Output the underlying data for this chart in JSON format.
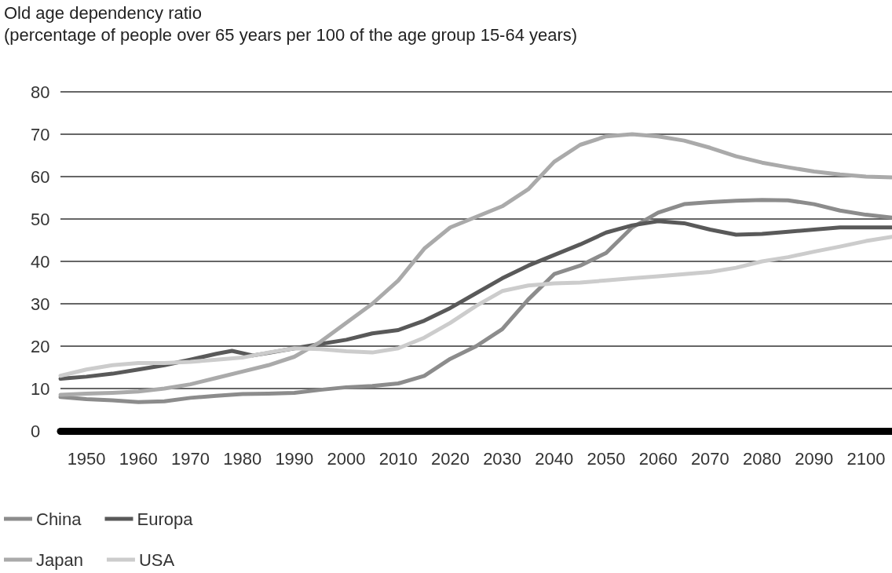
{
  "chart_data": {
    "type": "line",
    "title": "Old age dependency ratio",
    "subtitle": "(percentage of people over 65 years per 100 of the age group 15-64 years)",
    "xlim": [
      1945,
      2105
    ],
    "xticks": [
      1950,
      1960,
      1970,
      1980,
      1990,
      2000,
      2010,
      2020,
      2030,
      2040,
      2050,
      2060,
      2070,
      2080,
      2090,
      2100
    ],
    "ylim": [
      0,
      80
    ],
    "yticks": [
      0,
      10,
      20,
      30,
      40,
      50,
      60,
      70,
      80
    ],
    "grid": "y",
    "legend": "bottom left",
    "marker": "none",
    "line_style": "solid",
    "series": [
      {
        "name": "China",
        "color": "#8c8c8c",
        "x": [
          1945,
          1950,
          1955,
          1960,
          1965,
          1970,
          1975,
          1980,
          1985,
          1990,
          1995,
          2000,
          2005,
          2010,
          2015,
          2020,
          2025,
          2030,
          2035,
          2040,
          2045,
          2050,
          2055,
          2060,
          2065,
          2070,
          2075,
          2080,
          2085,
          2090,
          2095,
          2100,
          2105
        ],
        "values": [
          8,
          7.5,
          7.2,
          6.8,
          7,
          7.8,
          8.3,
          8.7,
          8.8,
          9,
          9.7,
          10.3,
          10.6,
          11.2,
          13,
          17,
          20,
          24,
          31,
          37,
          39,
          42,
          48,
          51.5,
          53.5,
          54,
          54.3,
          54.5,
          54.4,
          53.5,
          52,
          51,
          50.3
        ]
      },
      {
        "name": "Europa",
        "color": "#595959",
        "x": [
          1945,
          1950,
          1955,
          1960,
          1965,
          1970,
          1975,
          1978,
          1982,
          1985,
          1990,
          1995,
          2000,
          2005,
          2010,
          2015,
          2020,
          2025,
          2030,
          2035,
          2040,
          2045,
          2050,
          2055,
          2060,
          2065,
          2070,
          2075,
          2080,
          2085,
          2090,
          2095,
          2100,
          2105
        ],
        "values": [
          12.3,
          12.8,
          13.5,
          14.5,
          15.5,
          16.8,
          18.2,
          18.9,
          17.8,
          18.4,
          19.5,
          20.5,
          21.5,
          23,
          23.8,
          26,
          29,
          32.5,
          36,
          39,
          41.5,
          44,
          46.8,
          48.5,
          49.5,
          49,
          47.5,
          46.3,
          46.5,
          47,
          47.5,
          48,
          48,
          48
        ]
      },
      {
        "name": "Japan",
        "color": "#aaaaaa",
        "x": [
          1945,
          1950,
          1955,
          1960,
          1965,
          1970,
          1975,
          1980,
          1985,
          1990,
          1995,
          2000,
          2005,
          2010,
          2015,
          2020,
          2025,
          2030,
          2035,
          2040,
          2045,
          2050,
          2055,
          2060,
          2065,
          2070,
          2075,
          2080,
          2085,
          2090,
          2095,
          2100,
          2105
        ],
        "values": [
          8.5,
          8.8,
          9,
          9.3,
          10,
          11,
          12.5,
          14,
          15.5,
          17.5,
          21,
          25.5,
          30,
          35.5,
          43,
          48,
          50.5,
          53,
          57,
          63.5,
          67.5,
          69.5,
          70,
          69.5,
          68.5,
          66.8,
          64.8,
          63.3,
          62.2,
          61.2,
          60.5,
          60,
          59.8
        ]
      },
      {
        "name": "USA",
        "color": "#cccccc",
        "x": [
          1945,
          1950,
          1955,
          1960,
          1965,
          1970,
          1975,
          1980,
          1985,
          1990,
          1995,
          2000,
          2005,
          2010,
          2015,
          2020,
          2025,
          2030,
          2035,
          2040,
          2045,
          2050,
          2055,
          2060,
          2065,
          2070,
          2075,
          2080,
          2085,
          2090,
          2095,
          2100,
          2105
        ],
        "values": [
          13,
          14.5,
          15.5,
          16,
          16,
          16.3,
          16.8,
          17.3,
          18.5,
          19.5,
          19.3,
          18.8,
          18.5,
          19.5,
          22,
          25.5,
          29.5,
          33,
          34.3,
          34.8,
          35,
          35.5,
          36,
          36.5,
          37,
          37.5,
          38.5,
          40,
          41,
          42.3,
          43.5,
          44.8,
          45.8
        ]
      }
    ]
  }
}
